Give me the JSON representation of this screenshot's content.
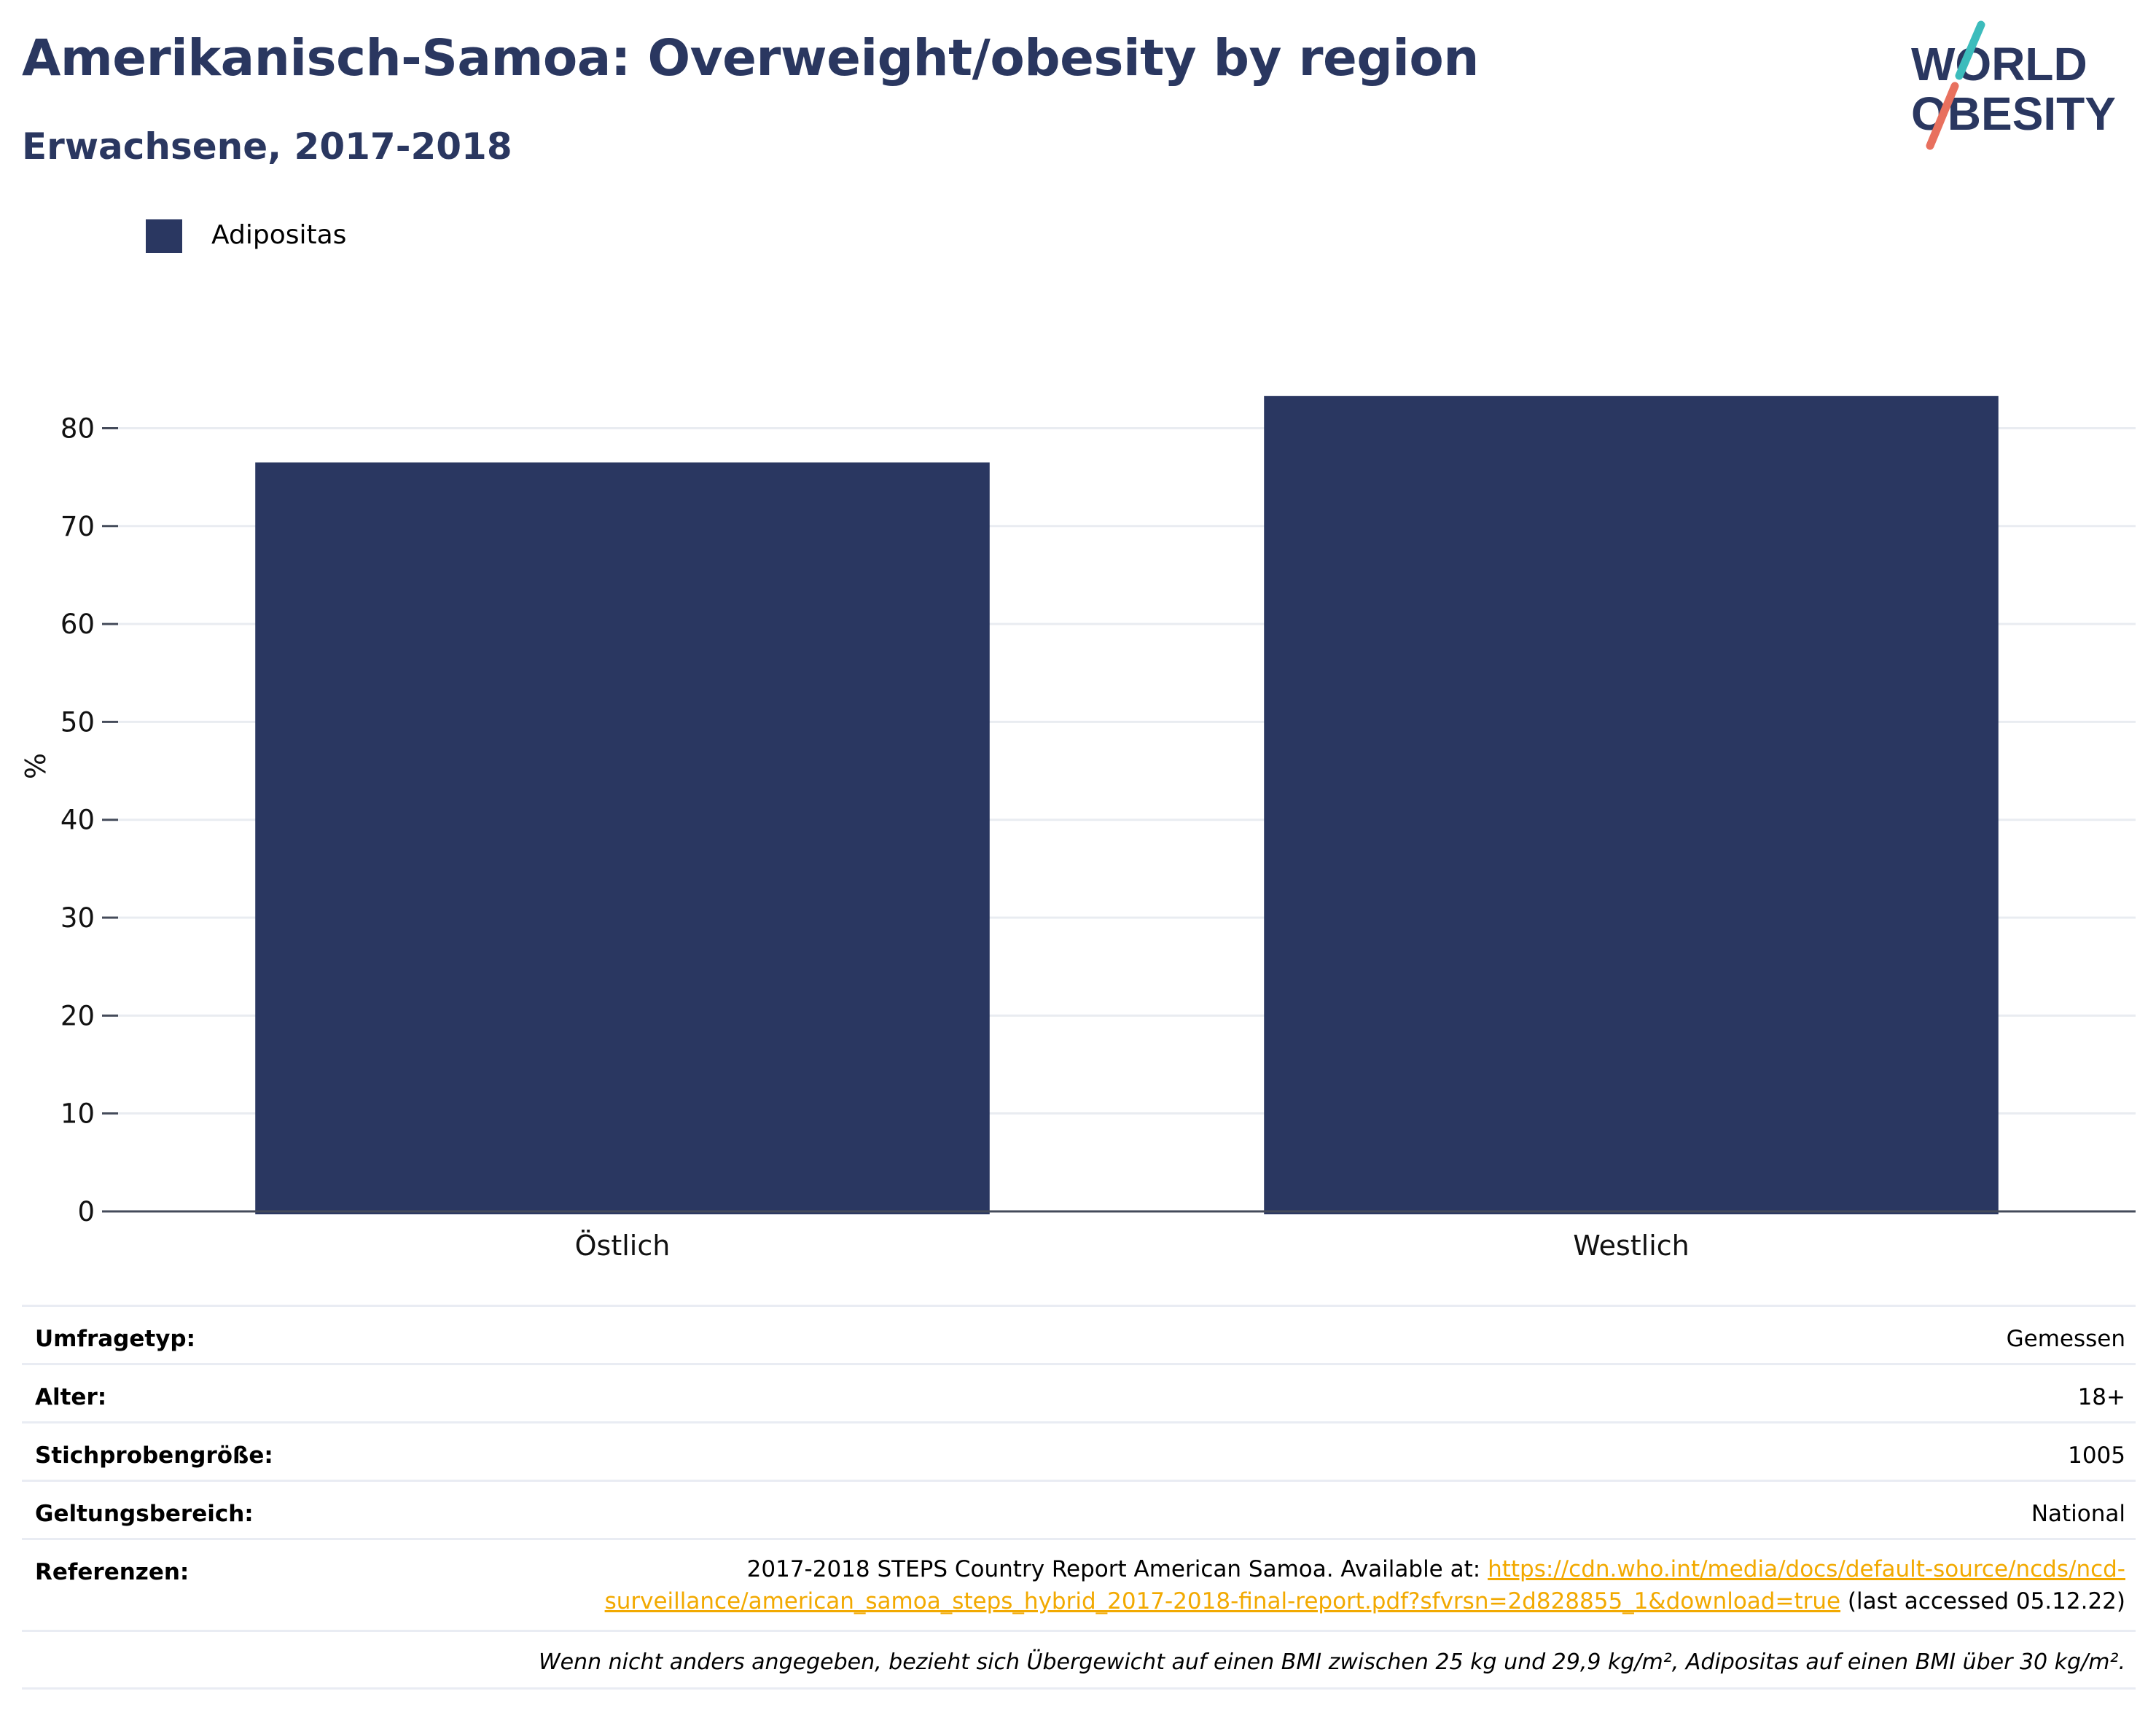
{
  "header": {
    "title": "Amerikanisch-Samoa: Overweight/obesity by region",
    "subtitle": "Erwachsene, 2017-2018",
    "logo_line1": "WORLD",
    "logo_line2": "OBESITY"
  },
  "legend": {
    "label": "Adipositas"
  },
  "chart_data": {
    "type": "bar",
    "categories": [
      "Östlich",
      "Westlich"
    ],
    "series": [
      {
        "name": "Adipositas",
        "values": [
          76.5,
          83.3
        ],
        "color": "#2a3761"
      }
    ],
    "ylabel": "%",
    "xlabel": "",
    "ylim": [
      0,
      88
    ],
    "yticks": [
      0,
      10,
      20,
      30,
      40,
      50,
      60,
      70,
      80
    ],
    "grid": true,
    "legend_position": "top-left"
  },
  "meta": {
    "survey_type_label": "Umfragetyp:",
    "survey_type_value": "Gemessen",
    "age_label": "Alter:",
    "age_value": "18+",
    "sample_label": "Stichprobengröße:",
    "sample_value": "1005",
    "scope_label": "Geltungsbereich:",
    "scope_value": "National",
    "refs_label": "Referenzen:",
    "refs_prefix": "2017-2018 STEPS Country Report American Samoa. Available at: ",
    "refs_link": "https://cdn.who.int/media/docs/default-source/ncds/ncd-surveillance/american_samoa_steps_hybrid_2017-2018-final-report.pdf?sfvrsn=2d828855_1&download=true",
    "refs_suffix": " (last accessed 05.12.22)",
    "note": "Wenn nicht anders angegeben, bezieht sich Übergewicht auf einen BMI zwischen 25 kg und 29,9 kg/m², Adipositas auf einen BMI über 30 kg/m²."
  },
  "colors": {
    "bar": "#2a3761",
    "title": "#2a3760",
    "link": "#f2a900",
    "logo_teal": "#3cbcbc",
    "logo_coral": "#e8705e"
  }
}
